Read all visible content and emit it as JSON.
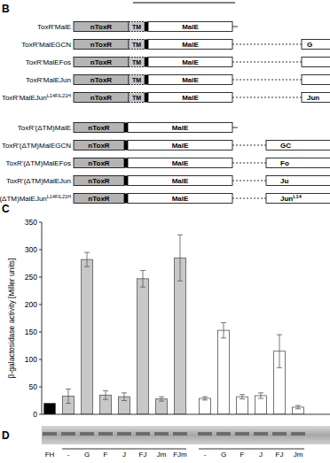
{
  "panel_b": {
    "label": "B",
    "groups": [
      {
        "domains": [
          "nToxR",
          "TM",
          "MalE"
        ],
        "rows": [
          {
            "label": "ToxR'MalE",
            "fused": false
          },
          {
            "label": "ToxR'MalEGCN",
            "fused": true,
            "fusion": "G"
          },
          {
            "label": "ToxR'MalEFos",
            "fused": true
          },
          {
            "label": "ToxR'MalEJun",
            "fused": true
          },
          {
            "label": "ToxR'MalEJun",
            "label_sup": "L14F/L21H",
            "fused": true,
            "fusion": "Jun"
          }
        ]
      },
      {
        "domains": [
          "nToxR",
          "MalE"
        ],
        "rows": [
          {
            "label": "ToxR'(ΔTM)MalE",
            "fused": false
          },
          {
            "label": "ToxR'(ΔTM)MalEGCN",
            "fused": true,
            "fusion": "GC"
          },
          {
            "label": "ToxR'(ΔTM)MalEFos",
            "fused": true,
            "fusion": "Fo"
          },
          {
            "label": "ToxR'(ΔTM)MalEJun",
            "fused": true,
            "fusion": "Ju"
          },
          {
            "label": "ToxR'(ΔTM)MalEJun",
            "label_sup": "L14F/L21H",
            "fused": true,
            "fusion": "Jun",
            "fusion_sup": "L14"
          }
        ]
      }
    ]
  },
  "panel_c": {
    "label": "C"
  },
  "chart_data": {
    "type": "bar",
    "y_label": "β-galactosidase activity [Miller units]",
    "categories": [
      "FH",
      "-",
      "G",
      "F",
      "J",
      "FJ",
      "Jm",
      "FJm",
      "-",
      "G",
      "F",
      "J",
      "FJ",
      "Jm"
    ],
    "values": [
      20,
      33,
      282,
      35,
      32,
      247,
      28,
      285,
      29,
      153,
      32,
      34,
      115,
      13
    ],
    "errors": [
      null,
      13,
      13,
      8,
      7,
      15,
      4,
      42,
      3,
      14,
      4,
      5,
      30,
      3
    ],
    "colors": [
      "#000000",
      "#c8c8c8",
      "#c8c8c8",
      "#c8c8c8",
      "#c8c8c8",
      "#c8c8c8",
      "#c8c8c8",
      "#c8c8c8",
      "#ffffff",
      "#ffffff",
      "#ffffff",
      "#ffffff",
      "#ffffff",
      "#ffffff"
    ],
    "ylim": [
      0,
      350
    ],
    "yticks": [
      0,
      50,
      100,
      150,
      200,
      250,
      300,
      350
    ],
    "tick_labels": "y"
  },
  "panel_d": {
    "label": "D"
  }
}
